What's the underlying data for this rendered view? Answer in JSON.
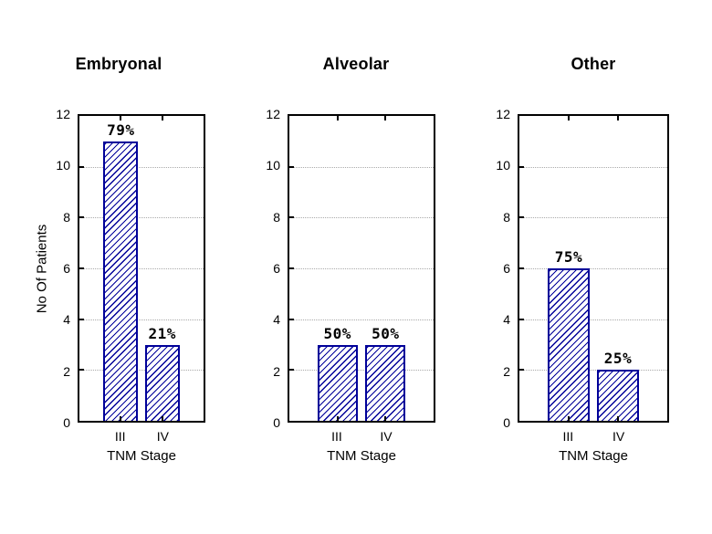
{
  "page": {
    "background": "#ffffff"
  },
  "chart_data": [
    {
      "type": "bar",
      "title": "Embryonal",
      "categories": [
        "III",
        "IV"
      ],
      "values": [
        11,
        3
      ],
      "bar_labels": [
        "79%",
        "21%"
      ],
      "xlabel": "TNM Stage",
      "ylabel": "No Of Patients",
      "ylim": [
        0,
        12
      ],
      "yticks": [
        0,
        2,
        4,
        6,
        8,
        10,
        12
      ],
      "grid": "horizontal-dotted",
      "legend": "none"
    },
    {
      "type": "bar",
      "title": "Alveolar",
      "categories": [
        "III",
        "IV"
      ],
      "values": [
        3,
        3
      ],
      "bar_labels": [
        "50%",
        "50%"
      ],
      "xlabel": "TNM Stage",
      "ylabel": "",
      "ylim": [
        0,
        12
      ],
      "yticks": [
        0,
        2,
        4,
        6,
        8,
        10,
        12
      ],
      "grid": "horizontal-dotted",
      "legend": "none"
    },
    {
      "type": "bar",
      "title": "Other",
      "categories": [
        "III",
        "IV"
      ],
      "values": [
        6,
        2
      ],
      "bar_labels": [
        "75%",
        "25%"
      ],
      "xlabel": "TNM Stage",
      "ylabel": "",
      "ylim": [
        0,
        12
      ],
      "yticks": [
        0,
        2,
        4,
        6,
        8,
        10,
        12
      ],
      "grid": "horizontal-dotted",
      "legend": "none"
    }
  ],
  "style": {
    "bar_edge_color": "#000099",
    "bar_hatch_color": "#000099",
    "bar_fill_color": "#ffffff",
    "hatch_pattern": "forward-diagonal",
    "grid_color": "#aaaaaa",
    "axis_color": "#000000",
    "text_color": "#000000"
  }
}
